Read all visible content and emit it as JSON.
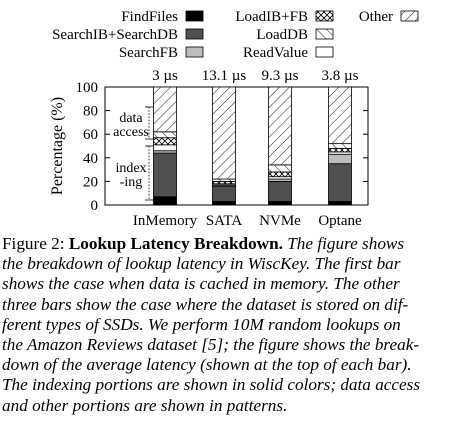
{
  "chart_data": {
    "type": "bar",
    "stacked": true,
    "categories": [
      "InMemory",
      "SATA",
      "NVMe",
      "Optane"
    ],
    "bar_labels": [
      "3 µs",
      "13.1 µs",
      "9.3 µs",
      "3.8 µs"
    ],
    "ylabel": "Percentage (%)",
    "ylim": [
      0,
      100
    ],
    "yticks": [
      0,
      20,
      40,
      60,
      80,
      100
    ],
    "legend_placement": "top",
    "series": [
      {
        "name": "FindFiles",
        "pattern": "solid-black",
        "values": [
          7,
          3,
          3,
          3
        ]
      },
      {
        "name": "SearchIB+SearchDB",
        "pattern": "solid-darkgray",
        "values": [
          37,
          13,
          17,
          32
        ]
      },
      {
        "name": "SearchFB",
        "pattern": "solid-lightgray",
        "values": [
          2,
          1,
          2,
          8
        ]
      },
      {
        "name": "ReadValue",
        "pattern": "white",
        "values": [
          5,
          1,
          2,
          2
        ]
      },
      {
        "name": "LoadIB+FB",
        "pattern": "crosshatch",
        "values": [
          6,
          2,
          4,
          3
        ]
      },
      {
        "name": "LoadDB",
        "pattern": "hatch-forward",
        "values": [
          5,
          2,
          6,
          4
        ]
      },
      {
        "name": "Other",
        "pattern": "hatch-backward",
        "values": [
          38,
          78,
          66,
          48
        ]
      }
    ],
    "annotations": [
      "data access",
      "index -ing"
    ],
    "colors": {
      "FindFiles": "#000000",
      "SearchIB+SearchDB": "#505050",
      "SearchFB": "#bdbdbd",
      "ReadValue": "#ffffff"
    }
  },
  "caption": {
    "label": "Figure 2:",
    "title": "Lookup Latency Breakdown.",
    "lines": [
      "The figure shows",
      "the breakdown of lookup latency in WiscKey. The first bar",
      "shows the case when data is cached in memory. The other",
      "three bars show the case where the dataset is stored on dif-",
      "ferent types of SSDs. We perform 10M random lookups on",
      "the Amazon Reviews dataset [5]; the figure shows the break-",
      "down of the average latency (shown at the top of each bar).",
      "The indexing portions are shown in solid colors; data access",
      "and other portions are shown in patterns."
    ]
  }
}
